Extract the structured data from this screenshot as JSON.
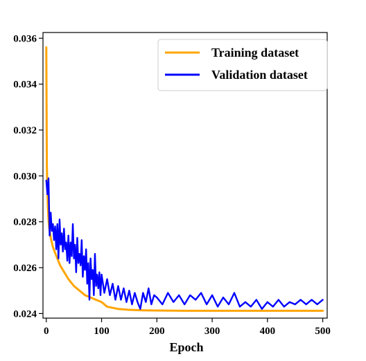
{
  "chart_data": {
    "type": "line",
    "title": "",
    "xlabel": "Epoch",
    "ylabel": "",
    "xlim": [
      -6,
      508
    ],
    "ylim": [
      0.0238,
      0.03625
    ],
    "x_ticks": [
      0,
      100,
      200,
      300,
      400,
      500
    ],
    "y_ticks": [
      0.024,
      0.026,
      0.028,
      0.03,
      0.032,
      0.034,
      0.036
    ],
    "x_tick_labels": [
      "0",
      "100",
      "200",
      "300",
      "400",
      "500"
    ],
    "y_tick_labels": [
      "0.024",
      "0.026",
      "0.028",
      "0.030",
      "0.032",
      "0.034",
      "0.036"
    ],
    "grid": false,
    "legend": {
      "position": "top-right",
      "entries": [
        "Training dataset",
        "Validation dataset"
      ]
    },
    "series": [
      {
        "name": "Training dataset",
        "color": "#FFA500",
        "x": [
          0,
          1,
          2,
          3,
          4,
          5,
          6,
          8,
          10,
          12,
          15,
          20,
          25,
          30,
          40,
          50,
          60,
          70,
          80,
          90,
          100,
          110,
          120,
          130,
          140,
          150,
          175,
          200,
          250,
          300,
          350,
          400,
          450,
          500
        ],
        "values": [
          0.0356,
          0.0305,
          0.0293,
          0.0286,
          0.0281,
          0.0278,
          0.0276,
          0.0273,
          0.0271,
          0.0269,
          0.0267,
          0.0264,
          0.0261,
          0.0259,
          0.0255,
          0.0252,
          0.025,
          0.0248,
          0.0247,
          0.0246,
          0.0245,
          0.0243,
          0.02425,
          0.0242,
          0.02418,
          0.02416,
          0.02414,
          0.02413,
          0.02412,
          0.02412,
          0.02412,
          0.02412,
          0.02412,
          0.02412
        ]
      },
      {
        "name": "Validation dataset",
        "color": "#0000FF",
        "x": [
          0,
          2,
          4,
          6,
          8,
          10,
          12,
          14,
          16,
          18,
          20,
          22,
          24,
          26,
          28,
          30,
          32,
          34,
          36,
          38,
          40,
          42,
          44,
          46,
          48,
          50,
          52,
          54,
          56,
          58,
          60,
          62,
          64,
          66,
          68,
          70,
          72,
          74,
          76,
          78,
          80,
          82,
          84,
          86,
          88,
          90,
          92,
          94,
          96,
          98,
          100,
          105,
          110,
          115,
          120,
          125,
          130,
          135,
          140,
          145,
          150,
          155,
          160,
          165,
          170,
          175,
          180,
          185,
          190,
          195,
          200,
          210,
          220,
          230,
          240,
          250,
          260,
          270,
          280,
          290,
          300,
          310,
          320,
          330,
          340,
          350,
          360,
          370,
          380,
          390,
          400,
          410,
          420,
          430,
          440,
          450,
          460,
          470,
          480,
          490,
          500
        ],
        "values": [
          0.0298,
          0.0292,
          0.0299,
          0.0274,
          0.0284,
          0.0276,
          0.0279,
          0.0272,
          0.0278,
          0.0268,
          0.0279,
          0.0264,
          0.0281,
          0.027,
          0.0275,
          0.0267,
          0.0277,
          0.0268,
          0.0271,
          0.0263,
          0.0274,
          0.0262,
          0.0271,
          0.0265,
          0.0279,
          0.0264,
          0.027,
          0.0258,
          0.0273,
          0.0262,
          0.0266,
          0.0261,
          0.0272,
          0.0256,
          0.0265,
          0.0259,
          0.0268,
          0.0253,
          0.0262,
          0.0246,
          0.0264,
          0.0255,
          0.0259,
          0.0248,
          0.0266,
          0.0252,
          0.0257,
          0.0251,
          0.0258,
          0.0248,
          0.0257,
          0.0249,
          0.0255,
          0.0248,
          0.0253,
          0.0246,
          0.0252,
          0.0246,
          0.0251,
          0.0245,
          0.025,
          0.0244,
          0.0249,
          0.0245,
          0.0242,
          0.0249,
          0.0245,
          0.0251,
          0.0244,
          0.0248,
          0.0247,
          0.0244,
          0.0249,
          0.0245,
          0.0248,
          0.0244,
          0.0248,
          0.0246,
          0.0249,
          0.0244,
          0.0248,
          0.0243,
          0.0247,
          0.0244,
          0.0249,
          0.0243,
          0.0245,
          0.0243,
          0.0246,
          0.0242,
          0.0245,
          0.0243,
          0.0246,
          0.0243,
          0.0245,
          0.0244,
          0.0246,
          0.0244,
          0.0246,
          0.0244,
          0.0246
        ]
      }
    ]
  }
}
